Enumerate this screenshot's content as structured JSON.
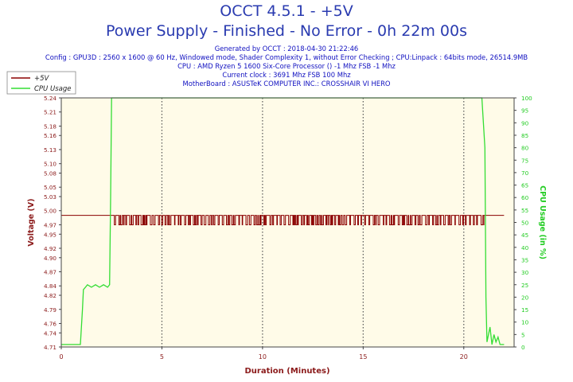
{
  "header": {
    "title": "OCCT 4.5.1 - +5V",
    "subtitle": "Power Supply - Finished - No Error - 0h 22m 00s",
    "info_lines": [
      "Generated by OCCT : 2018-04-30 21:22:46",
      "Config : GPU3D : 2560 x 1600 @ 60 Hz, Windowed mode, Shader Complexity 1, without Error Checking ; CPU:Linpack : 64bits mode, 26514.9MB",
      "CPU : AMD Ryzen 5 1600 Six-Core Processor () -1 Mhz FSB -1 Mhz",
      "Current clock : 3691 Mhz FSB 100 Mhz",
      "MotherBoard : ASUSTeK COMPUTER INC.: CROSSHAIR VI HERO"
    ]
  },
  "colors": {
    "voltage": "#8b0000",
    "cpu": "#33dd33",
    "plot_bg": "#fffbe8",
    "grid": "#555555",
    "left_axis_text": "#8b1a1a",
    "right_axis_text": "#22cc22"
  },
  "chart_data": {
    "type": "line",
    "xlabel": "Duration (Minutes)",
    "ylabel": "Voltage (V)",
    "y2label": "CPU Usage (in %)",
    "xlim": [
      0,
      22.5
    ],
    "ylim": [
      4.71,
      5.24
    ],
    "y2lim": [
      0,
      100
    ],
    "x_ticks": [
      "0",
      "5",
      "10",
      "15",
      "20"
    ],
    "y_ticks": [
      "4.71",
      "4.74",
      "4.76",
      "4.79",
      "4.82",
      "4.84",
      "4.87",
      "4.90",
      "4.92",
      "4.95",
      "4.97",
      "5.00",
      "5.03",
      "5.05",
      "5.08",
      "5.10",
      "5.13",
      "5.16",
      "5.18",
      "5.21",
      "5.24"
    ],
    "y2_ticks": [
      "0",
      "5",
      "10",
      "15",
      "20",
      "25",
      "30",
      "35",
      "40",
      "45",
      "50",
      "55",
      "60",
      "65",
      "70",
      "75",
      "80",
      "85",
      "90",
      "95",
      "100"
    ],
    "grid": true,
    "legend_position": "top-left",
    "series": [
      {
        "name": "+5V",
        "axis": "left",
        "note": "nominal 4.99 V with frequent brief dips to 4.97 V between 2.5 and 21.0 min",
        "points": [
          [
            0,
            4.99
          ],
          [
            2.5,
            4.99
          ],
          [
            21.0,
            4.99
          ],
          [
            22.0,
            4.99
          ]
        ],
        "dip_value": 4.97,
        "dip_range": [
          2.5,
          21.0
        ]
      },
      {
        "name": "CPU Usage",
        "axis": "right",
        "points": [
          [
            0,
            1
          ],
          [
            0.95,
            1
          ],
          [
            1.05,
            15
          ],
          [
            1.1,
            23
          ],
          [
            1.3,
            25
          ],
          [
            1.5,
            24
          ],
          [
            1.7,
            25
          ],
          [
            1.9,
            24
          ],
          [
            2.1,
            25
          ],
          [
            2.3,
            24
          ],
          [
            2.4,
            25
          ],
          [
            2.45,
            60
          ],
          [
            2.5,
            100
          ],
          [
            20.9,
            100
          ],
          [
            21.05,
            80
          ],
          [
            21.1,
            20
          ],
          [
            21.15,
            2
          ],
          [
            21.3,
            8
          ],
          [
            21.4,
            1
          ],
          [
            21.5,
            5
          ],
          [
            21.6,
            2
          ],
          [
            21.7,
            4
          ],
          [
            21.8,
            1
          ],
          [
            22.0,
            1
          ]
        ]
      }
    ]
  }
}
